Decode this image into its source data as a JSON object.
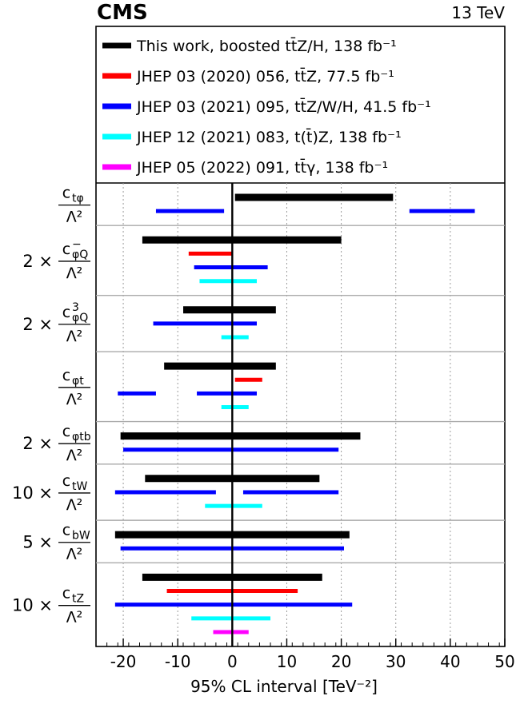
{
  "header": {
    "experiment": "CMS",
    "energy": "13 TeV"
  },
  "legend": [
    {
      "label": "This work, boosted tt̄Z/H, 138 fb⁻¹",
      "color": "#000000"
    },
    {
      "label": "JHEP 03 (2020) 056, tt̄Z, 77.5 fb⁻¹",
      "color": "#ff0000"
    },
    {
      "label": "JHEP 03 (2021) 095, tt̄Z/W/H, 41.5 fb⁻¹",
      "color": "#0000ff"
    },
    {
      "label": "JHEP 12 (2021) 083, t(t̄)Z, 138 fb⁻¹",
      "color": "#00ffff"
    },
    {
      "label": "JHEP 05 (2022) 091, tt̄γ, 138 fb⁻¹",
      "color": "#ff00ff"
    }
  ],
  "chart_data": {
    "type": "interval",
    "xlabel": "95% CL interval [TeV⁻²]",
    "xlim": [
      -25,
      50
    ],
    "xticks": [
      -20,
      -10,
      0,
      10,
      20,
      30,
      40,
      50
    ],
    "xtick_labels": [
      "-20",
      "-10",
      "0",
      "10",
      "20",
      "30",
      "40",
      "50"
    ],
    "grid": "vertical dotted",
    "vertical_line_at": 0,
    "legend_position": "top",
    "coefficients": [
      {
        "multiplier": "",
        "name": "c",
        "sub": "tφ",
        "sup": "",
        "denominator": "Λ²",
        "intervals": [
          {
            "series": 0,
            "segments": [
              [
                0.5,
                29.5
              ]
            ]
          },
          {
            "series": 2,
            "segments": [
              [
                -14,
                -1.5
              ],
              [
                32.5,
                44.5
              ]
            ]
          }
        ]
      },
      {
        "multiplier": "2 ×",
        "name": "c",
        "sub": "φQ",
        "sup": "−",
        "denominator": "Λ²",
        "intervals": [
          {
            "series": 0,
            "segments": [
              [
                -16.5,
                20
              ]
            ]
          },
          {
            "series": 1,
            "segments": [
              [
                -8,
                0
              ]
            ]
          },
          {
            "series": 2,
            "segments": [
              [
                -7,
                6.5
              ]
            ]
          },
          {
            "series": 3,
            "segments": [
              [
                -6,
                4.5
              ]
            ]
          }
        ]
      },
      {
        "multiplier": "2 ×",
        "name": "c",
        "sub": "φQ",
        "sup": "3",
        "denominator": "Λ²",
        "intervals": [
          {
            "series": 0,
            "segments": [
              [
                -9,
                8
              ]
            ]
          },
          {
            "series": 2,
            "segments": [
              [
                -14.5,
                4.5
              ]
            ]
          },
          {
            "series": 3,
            "segments": [
              [
                -2,
                3
              ]
            ]
          }
        ]
      },
      {
        "multiplier": "",
        "name": "c",
        "sub": "φt",
        "sup": "",
        "denominator": "Λ²",
        "intervals": [
          {
            "series": 0,
            "segments": [
              [
                -12.5,
                8
              ]
            ]
          },
          {
            "series": 1,
            "segments": [
              [
                0.5,
                5.5
              ]
            ]
          },
          {
            "series": 2,
            "segments": [
              [
                -21,
                -14
              ],
              [
                -6.5,
                4.5
              ]
            ]
          },
          {
            "series": 3,
            "segments": [
              [
                -2,
                3
              ]
            ]
          }
        ]
      },
      {
        "multiplier": "2 ×",
        "name": "c",
        "sub": "φtb",
        "sup": "",
        "denominator": "Λ²",
        "intervals": [
          {
            "series": 0,
            "segments": [
              [
                -20.5,
                23.5
              ]
            ]
          },
          {
            "series": 2,
            "segments": [
              [
                -20,
                19.5
              ]
            ]
          }
        ]
      },
      {
        "multiplier": "10 ×",
        "name": "c",
        "sub": "tW",
        "sup": "",
        "denominator": "Λ²",
        "intervals": [
          {
            "series": 0,
            "segments": [
              [
                -16,
                16
              ]
            ]
          },
          {
            "series": 2,
            "segments": [
              [
                -21.5,
                -3
              ],
              [
                2,
                19.5
              ]
            ]
          },
          {
            "series": 3,
            "segments": [
              [
                -5,
                5.5
              ]
            ]
          }
        ]
      },
      {
        "multiplier": "5 ×",
        "name": "c",
        "sub": "bW",
        "sup": "",
        "denominator": "Λ²",
        "intervals": [
          {
            "series": 0,
            "segments": [
              [
                -21.5,
                21.5
              ]
            ]
          },
          {
            "series": 2,
            "segments": [
              [
                -20.5,
                20.5
              ]
            ]
          }
        ]
      },
      {
        "multiplier": "10 ×",
        "name": "c",
        "sub": "tZ",
        "sup": "",
        "denominator": "Λ²",
        "intervals": [
          {
            "series": 0,
            "segments": [
              [
                -16.5,
                16.5
              ]
            ]
          },
          {
            "series": 1,
            "segments": [
              [
                -12,
                12
              ]
            ]
          },
          {
            "series": 2,
            "segments": [
              [
                -21.5,
                22
              ]
            ]
          },
          {
            "series": 3,
            "segments": [
              [
                -7.5,
                7
              ]
            ]
          },
          {
            "series": 4,
            "segments": [
              [
                -3.5,
                3
              ]
            ]
          }
        ]
      }
    ]
  }
}
